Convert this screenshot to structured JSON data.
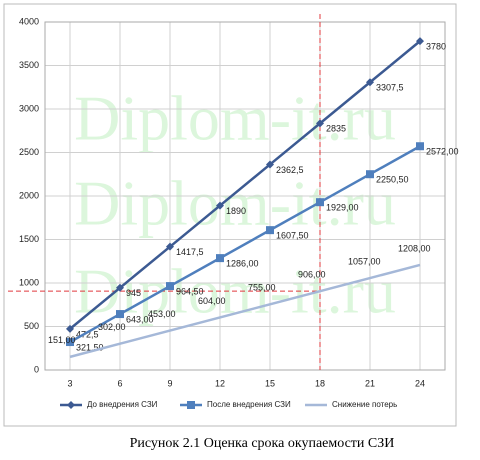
{
  "chart_data": {
    "type": "line",
    "caption": "Рисунок 2.1 Оценка срока окупаемости СЗИ",
    "watermark": "Diplom-it.ru",
    "x": [
      3,
      6,
      9,
      12,
      15,
      18,
      21,
      24
    ],
    "xlim": [
      1.5,
      25.5
    ],
    "xticks": [
      3,
      6,
      9,
      12,
      15,
      18,
      21,
      24
    ],
    "ylim": [
      0,
      4000
    ],
    "yticks": [
      0,
      500,
      1000,
      1500,
      2000,
      2500,
      3000,
      3500,
      4000
    ],
    "grid": true,
    "vline": 18,
    "hline": 906,
    "ref_color": "#e0393e",
    "series": [
      {
        "name": "До внедрения СЗИ",
        "color": "#3c5a92",
        "marker": "diamond",
        "values": [
          472.5,
          945,
          1417.5,
          1890,
          2362.5,
          2835,
          3307.5,
          3780
        ],
        "value_labels": [
          "472,5",
          "945",
          "1417,5",
          "1890",
          "2362,5",
          "2835",
          "3307,5",
          "3780"
        ]
      },
      {
        "name": "После внедрения СЗИ",
        "color": "#4f7fbd",
        "marker": "square",
        "values": [
          321.5,
          643,
          964.5,
          1286,
          1607.5,
          1929,
          2250.5,
          2572
        ],
        "value_labels": [
          "321,50",
          "643,00",
          "964,50",
          "1286,00",
          "1607,50",
          "1929,00",
          "2250,50",
          "2572,00"
        ]
      },
      {
        "name": "Снижение потерь",
        "color": "#a5b8d8",
        "marker": "none",
        "values": [
          151,
          302,
          453,
          604,
          755,
          906,
          1057,
          1208
        ],
        "value_labels": [
          "151,00",
          "302,00",
          "453,00",
          "604,00",
          "755,00",
          "906,00",
          "1057,00",
          "1208,00"
        ]
      }
    ]
  }
}
